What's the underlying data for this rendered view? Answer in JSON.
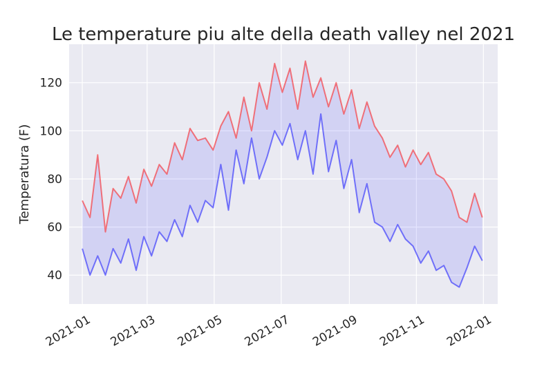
{
  "chart_data": {
    "type": "line",
    "title": "Le temperature piu alte della death valley nel 2021",
    "xlabel": "",
    "ylabel": "Temperatura (F)",
    "xlim": [
      "2020-12-20",
      "2022-01-14"
    ],
    "ylim": [
      28,
      136
    ],
    "grid": true,
    "legend": "none",
    "x_ticks": [
      "2021-01",
      "2021-03",
      "2021-05",
      "2021-07",
      "2021-09",
      "2021-11",
      "2022-01"
    ],
    "y_ticks": [
      40,
      60,
      80,
      100,
      120
    ],
    "fill_between": {
      "color": "#0000ff",
      "alpha": 0.1
    },
    "x": [
      "2021-01-01",
      "2021-01-08",
      "2021-01-15",
      "2021-01-22",
      "2021-01-29",
      "2021-02-05",
      "2021-02-12",
      "2021-02-19",
      "2021-02-26",
      "2021-03-05",
      "2021-03-12",
      "2021-03-19",
      "2021-03-26",
      "2021-04-02",
      "2021-04-09",
      "2021-04-16",
      "2021-04-23",
      "2021-04-30",
      "2021-05-07",
      "2021-05-14",
      "2021-05-21",
      "2021-05-28",
      "2021-06-04",
      "2021-06-11",
      "2021-06-18",
      "2021-06-25",
      "2021-07-02",
      "2021-07-09",
      "2021-07-16",
      "2021-07-23",
      "2021-07-30",
      "2021-08-06",
      "2021-08-13",
      "2021-08-20",
      "2021-08-27",
      "2021-09-03",
      "2021-09-10",
      "2021-09-17",
      "2021-09-24",
      "2021-10-01",
      "2021-10-08",
      "2021-10-15",
      "2021-10-22",
      "2021-10-29",
      "2021-11-05",
      "2021-11-12",
      "2021-11-19",
      "2021-11-26",
      "2021-12-03",
      "2021-12-10",
      "2021-12-17",
      "2021-12-24",
      "2021-12-31"
    ],
    "series": [
      {
        "color": "#ff0000",
        "values": [
          71,
          64,
          90,
          58,
          76,
          72,
          81,
          70,
          84,
          77,
          86,
          82,
          95,
          88,
          101,
          96,
          97,
          92,
          102,
          108,
          97,
          114,
          100,
          120,
          109,
          128,
          116,
          126,
          109,
          129,
          114,
          122,
          110,
          120,
          107,
          117,
          101,
          112,
          102,
          97,
          89,
          94,
          85,
          92,
          86,
          91,
          82,
          80,
          75,
          64,
          62,
          74,
          64
        ]
      },
      {
        "color": "#0000ff",
        "values": [
          51,
          40,
          48,
          40,
          51,
          45,
          55,
          42,
          56,
          48,
          58,
          54,
          63,
          56,
          69,
          62,
          71,
          68,
          86,
          67,
          92,
          78,
          97,
          80,
          89,
          100,
          94,
          103,
          88,
          100,
          82,
          107,
          83,
          96,
          76,
          88,
          66,
          78,
          62,
          60,
          54,
          61,
          55,
          52,
          45,
          50,
          42,
          44,
          37,
          35,
          43,
          52,
          46
        ]
      }
    ]
  }
}
